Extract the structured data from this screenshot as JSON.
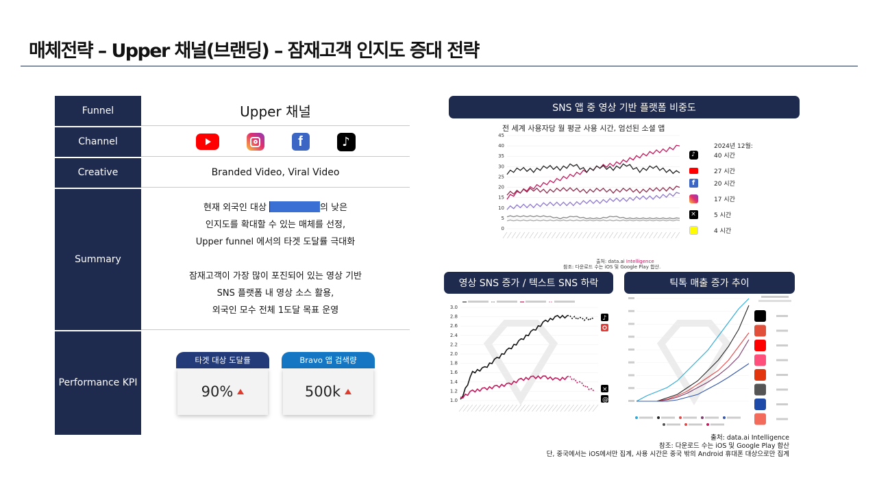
{
  "page": {
    "title": "매체전략 – Upper 채널(브랜딩) – 잠재고객 인지도 증대 전략"
  },
  "table": {
    "funnel_label": "Funnel",
    "funnel_value": "Upper 채널",
    "channel_label": "Channel",
    "channel_icons": [
      "youtube-icon",
      "instagram-icon",
      "facebook-icon",
      "tiktok-icon"
    ],
    "creative_label": "Creative",
    "creative_value": "Branded Video, Viral Video",
    "summary_label": "Summary",
    "summary": {
      "l1a": "현재 외국인 대상 ",
      "l1b": "의 낮은",
      "l2": "인지도를 확대할 수 있는 매체를 선정,",
      "l3": "Upper funnel 에서의 타겟 도달률 극대화",
      "l4": "잠재고객이 가장 많이 포진되어 있는 영상 기반",
      "l5": "SNS 플랫폼 내 영상 소스 활용,",
      "l6": "외국인 모수 전체 1도달 목표 운영"
    },
    "kpi_label": "Performance KPI",
    "kpis": [
      {
        "caption": "타겟 대상 도달률",
        "value": "90%",
        "color": "#233b78"
      },
      {
        "caption": "Bravo 앱 검색량",
        "value": "500k",
        "color": "#1577c3"
      }
    ]
  },
  "right": {
    "top_pill": "SNS 앱 중 영상 기반 플랫폼 비중도",
    "top_chart_title": "전 세계 사용자당 월 평균 사용 시간, 엄선된 소셜 앱",
    "top_legend_header": "2024년 12월:",
    "top_legend": [
      {
        "icon": "tiktok-icon",
        "label": "40 시간"
      },
      {
        "icon": "youtube-icon",
        "label": "27 시간"
      },
      {
        "icon": "facebook-icon",
        "label": "20 시간"
      },
      {
        "icon": "instagram-icon",
        "label": "17 시간"
      },
      {
        "icon": "x-icon",
        "label": "5 시간"
      },
      {
        "icon": "snapchat-icon",
        "label": "4 시간"
      }
    ],
    "top_src1a": "출처: data.ai ",
    "top_src1b": "Intelligence",
    "top_src2": "참조: 다운로드 수는 iOS 및 Google Play 합산.",
    "left_pill": "영상 SNS 증가 / 텍스트 SNS 하락",
    "right_pill": "틱톡 매출 증가 추이",
    "sources": {
      "s1": "출처: data.ai Intelligence",
      "s2": "참조: 다운로드 수는 iOS 및 Google Play 합산",
      "s3": "단, 중국에서는 iOS에서만 집계, 사용 시간은 중국 밖의 Android 휴대폰 대상으로만 집계"
    }
  },
  "chart_data": [
    {
      "type": "line",
      "title": "전 세계 사용자당 월 평균 사용 시간, 엄선된 소셜 앱",
      "ylim": [
        0,
        45
      ],
      "y_ticks": [
        "0",
        "5",
        "10",
        "15",
        "20",
        "25",
        "30",
        "35",
        "40",
        "45"
      ],
      "series": [
        {
          "name": "TikTok",
          "color": "#c2185b",
          "values": [
            15,
            18,
            20,
            22,
            24,
            26,
            28,
            30,
            31,
            33,
            35,
            37,
            38,
            40
          ]
        },
        {
          "name": "YouTube",
          "color": "#222222",
          "values": [
            27,
            29,
            28,
            30,
            29,
            31,
            28,
            30,
            29,
            31,
            28,
            30,
            28,
            27
          ]
        },
        {
          "name": "Facebook",
          "color": "#8c2a4a",
          "values": [
            17,
            18,
            19,
            18,
            19,
            19,
            18,
            19,
            18,
            19,
            18,
            19,
            19,
            20
          ]
        },
        {
          "name": "Instagram",
          "color": "#8d76d2",
          "values": [
            10,
            11,
            11,
            12,
            12,
            12,
            13,
            13,
            14,
            14,
            15,
            15,
            16,
            17
          ]
        },
        {
          "name": "X",
          "color": "#888888",
          "values": [
            6,
            6,
            6,
            6,
            5,
            6,
            5,
            5,
            6,
            5,
            5,
            5,
            5,
            5
          ]
        },
        {
          "name": "Snapchat",
          "color": "#aaaaaa",
          "values": [
            4,
            4,
            4,
            4,
            4,
            4,
            4,
            4,
            4,
            4,
            4,
            4,
            4,
            4
          ]
        }
      ]
    },
    {
      "type": "line",
      "ylim": [
        1.0,
        3.0
      ],
      "y_ticks": [
        "1.0",
        "1.2",
        "1.4",
        "1.6",
        "1.8",
        "2.0",
        "2.2",
        "2.4",
        "2.6",
        "2.8",
        "3.0"
      ],
      "series": [
        {
          "color": "#111111",
          "values": [
            1.0,
            1.6,
            1.7,
            1.9,
            2.1,
            2.3,
            2.5,
            2.7,
            2.8,
            2.8,
            2.75,
            2.75
          ]
        },
        {
          "color": "#c2185b",
          "values": [
            1.05,
            1.2,
            1.25,
            1.3,
            1.35,
            1.45,
            1.5,
            1.5,
            1.45,
            1.5,
            1.35,
            1.2
          ]
        }
      ]
    },
    {
      "type": "line",
      "series": [
        {
          "color": "#29a8d8",
          "values": [
            0,
            8,
            14,
            20,
            30,
            45,
            60,
            75,
            95,
            115,
            135,
            150
          ]
        },
        {
          "color": "#222222",
          "values": [
            0,
            0,
            0,
            5,
            10,
            20,
            30,
            45,
            60,
            80,
            105,
            140
          ]
        },
        {
          "color": "#e04848",
          "values": [
            0,
            0,
            0,
            3,
            8,
            15,
            25,
            35,
            45,
            60,
            80,
            100
          ]
        },
        {
          "color": "#7a3a6a",
          "values": [
            0,
            0,
            0,
            2,
            6,
            12,
            20,
            28,
            38,
            50,
            65,
            90
          ]
        },
        {
          "color": "#3355aa",
          "values": [
            0,
            0,
            0,
            0,
            2,
            6,
            10,
            18,
            26,
            35,
            45,
            55
          ]
        }
      ]
    }
  ]
}
